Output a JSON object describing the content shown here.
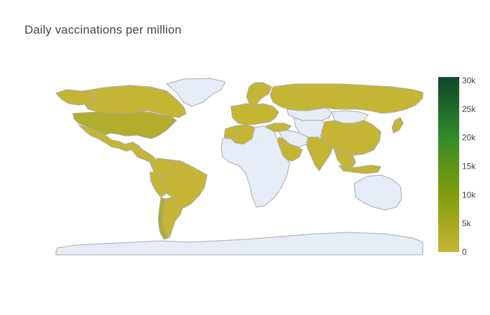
{
  "title": "Daily vaccinations per million",
  "colors": {
    "no_data": "#e5ecf6",
    "border": "#aaaaaa",
    "scale": [
      "#c5b535",
      "#b0ae2c",
      "#97a61c",
      "#7d9c0d",
      "#5c9418",
      "#2f8a2a",
      "#1e6a2b",
      "#12452b"
    ]
  },
  "colorbar": {
    "ticks": [
      "0",
      "5k",
      "10k",
      "15k",
      "20k",
      "25k",
      "30k"
    ],
    "min": 0,
    "max": 30000
  },
  "regions": [
    {
      "name": "Canada",
      "value": 2500
    },
    {
      "name": "Alaska",
      "value": 4000
    },
    {
      "name": "United States",
      "value": 5000
    },
    {
      "name": "Mexico",
      "value": 2500
    },
    {
      "name": "Central America",
      "value": 1500
    },
    {
      "name": "Brazil",
      "value": 2500
    },
    {
      "name": "Colombia",
      "value": 2000
    },
    {
      "name": "Argentina",
      "value": 2000
    },
    {
      "name": "Chile",
      "value": 5500
    },
    {
      "name": "Peru",
      "value": 1500
    },
    {
      "name": "Greenland",
      "value": null
    },
    {
      "name": "Western Europe",
      "value": 2500
    },
    {
      "name": "Scandinavia",
      "value": 2000
    },
    {
      "name": "Russia",
      "value": 1500
    },
    {
      "name": "Kazakhstan",
      "value": null
    },
    {
      "name": "Central Asia",
      "value": null
    },
    {
      "name": "Mongolia",
      "value": null
    },
    {
      "name": "China",
      "value": 2500
    },
    {
      "name": "India",
      "value": 1500
    },
    {
      "name": "Southeast Asia",
      "value": 2000
    },
    {
      "name": "Indonesia",
      "value": 2000
    },
    {
      "name": "Japan",
      "value": 2500
    },
    {
      "name": "Turkey",
      "value": 2500
    },
    {
      "name": "Middle East",
      "value": null
    },
    {
      "name": "Arabian Peninsula",
      "value": 2000
    },
    {
      "name": "Morocco",
      "value": 2000
    },
    {
      "name": "Algeria",
      "value": 1500
    },
    {
      "name": "Africa",
      "value": null
    },
    {
      "name": "Australia",
      "value": null
    },
    {
      "name": "Antarctica",
      "value": null
    }
  ]
}
